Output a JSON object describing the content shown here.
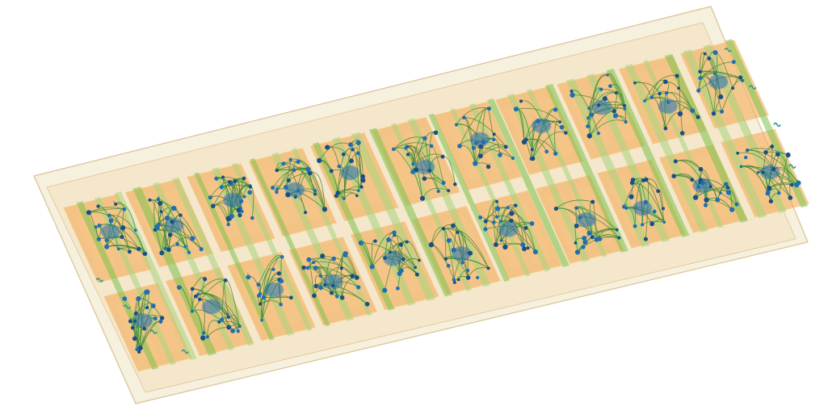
{
  "image": {
    "subject": "3d-chip-layout-render",
    "background_color": "#ffffff",
    "colors": {
      "substrate": "#efe3c4",
      "substrate_edge": "#d9c28f",
      "cell_orange": "#f3a54a",
      "cell_orange_light": "#f7c98a",
      "bar_green": "#7cc24c",
      "bar_green_light": "#a8d67e",
      "wire_green": "#3d8a3a",
      "node_blue": "#1f6fb2",
      "node_blue_dark": "#174f86",
      "pad_teal": "#2f9d8a"
    },
    "block_rows": 2,
    "block_columns": 11,
    "pad_count": 8
  }
}
